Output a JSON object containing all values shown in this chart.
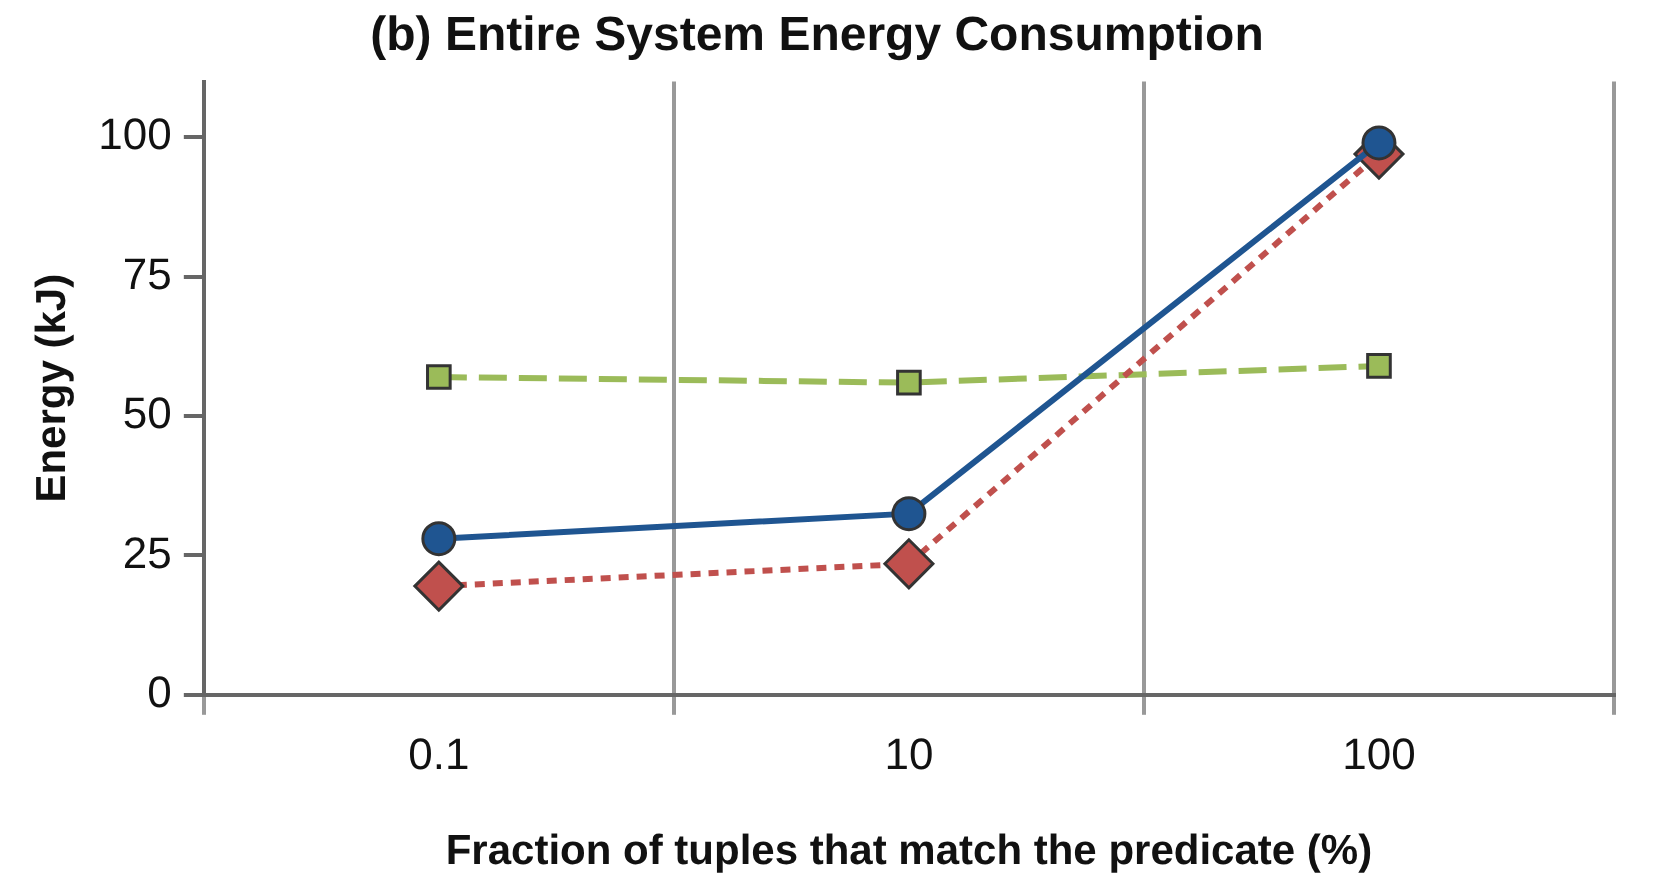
{
  "chart_data": {
    "type": "line",
    "title": "(b) Entire System Energy Consumption",
    "xlabel": "Fraction of tuples that match the predicate (%)",
    "ylabel": "Energy (kJ)",
    "categories": [
      "0.1",
      "10",
      "100"
    ],
    "series": [
      {
        "color": "#1f5591",
        "values": [
          28,
          32.5,
          99
        ],
        "marker": "circle",
        "line_style": "solid"
      },
      {
        "color": "#c0504d",
        "values": [
          19.5,
          23.5,
          97
        ],
        "marker": "diamond",
        "line_style": "dotted"
      },
      {
        "color": "#9bbb59",
        "values": [
          57,
          56,
          59
        ],
        "marker": "square",
        "line_style": "dashed"
      }
    ],
    "ylim": [
      0,
      110
    ],
    "yticks": [
      0,
      25,
      50,
      75,
      100
    ],
    "grid": "x",
    "legend": false
  }
}
